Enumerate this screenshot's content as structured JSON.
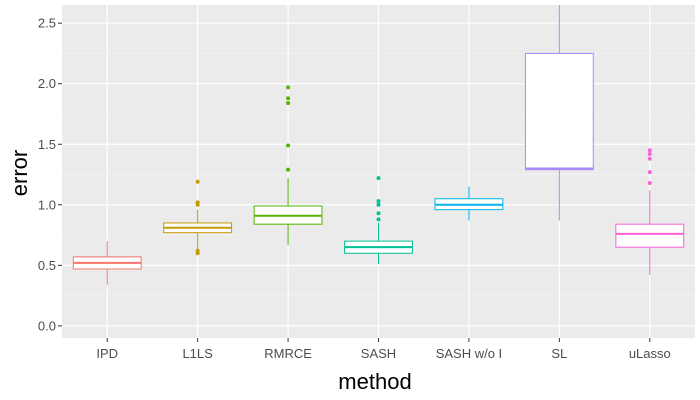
{
  "chart_data": {
    "type": "boxplot",
    "xlabel": "method",
    "ylabel": "error",
    "ylim": [
      -0.1,
      2.65
    ],
    "yticks": [
      0.0,
      0.5,
      1.0,
      1.5,
      2.0,
      2.5
    ],
    "ytick_labels": [
      "0.0",
      "0.5",
      "1.0",
      "1.5",
      "2.0",
      "2.5"
    ],
    "grid": true,
    "legend": "none",
    "panel_background": "#ebebeb",
    "categories": [
      "IPD",
      "L1LS",
      "RMRCE",
      "SASH",
      "SASH w/o I",
      "SL",
      "uLasso"
    ],
    "boxes": [
      {
        "category": "IPD",
        "color": "#f8766d",
        "whisker_low": 0.34,
        "q1": 0.47,
        "median": 0.52,
        "q3": 0.57,
        "whisker_high": 0.7,
        "outliers": []
      },
      {
        "category": "L1LS",
        "color": "#c49a00",
        "whisker_low": 0.63,
        "q1": 0.77,
        "median": 0.81,
        "q3": 0.85,
        "whisker_high": 0.96,
        "outliers": [
          0.6,
          0.62,
          1.0,
          1.02,
          1.19
        ]
      },
      {
        "category": "RMRCE",
        "color": "#53b400",
        "whisker_low": 0.67,
        "q1": 0.84,
        "median": 0.91,
        "q3": 0.99,
        "whisker_high": 1.22,
        "outliers": [
          1.29,
          1.49,
          1.84,
          1.88,
          1.97
        ]
      },
      {
        "category": "SASH",
        "color": "#00c094",
        "whisker_low": 0.51,
        "q1": 0.6,
        "median": 0.65,
        "q3": 0.7,
        "whisker_high": 0.85,
        "outliers": [
          0.88,
          0.93,
          1.0,
          1.03,
          1.22
        ]
      },
      {
        "category": "SASH w/o I",
        "color": "#00b6eb",
        "whisker_low": 0.87,
        "q1": 0.96,
        "median": 1.0,
        "q3": 1.05,
        "whisker_high": 1.15,
        "outliers": []
      },
      {
        "category": "SL",
        "color": "#a58aff",
        "whisker_low": 0.87,
        "q1": 1.29,
        "median": 1.3,
        "q3": 2.25,
        "whisker_high": 2.65,
        "outliers": []
      },
      {
        "category": "uLasso",
        "color": "#fb61d7",
        "whisker_low": 0.42,
        "q1": 0.65,
        "median": 0.76,
        "q3": 0.84,
        "whisker_high": 1.12,
        "outliers": [
          1.18,
          1.27,
          1.38,
          1.42,
          1.45
        ]
      }
    ]
  }
}
